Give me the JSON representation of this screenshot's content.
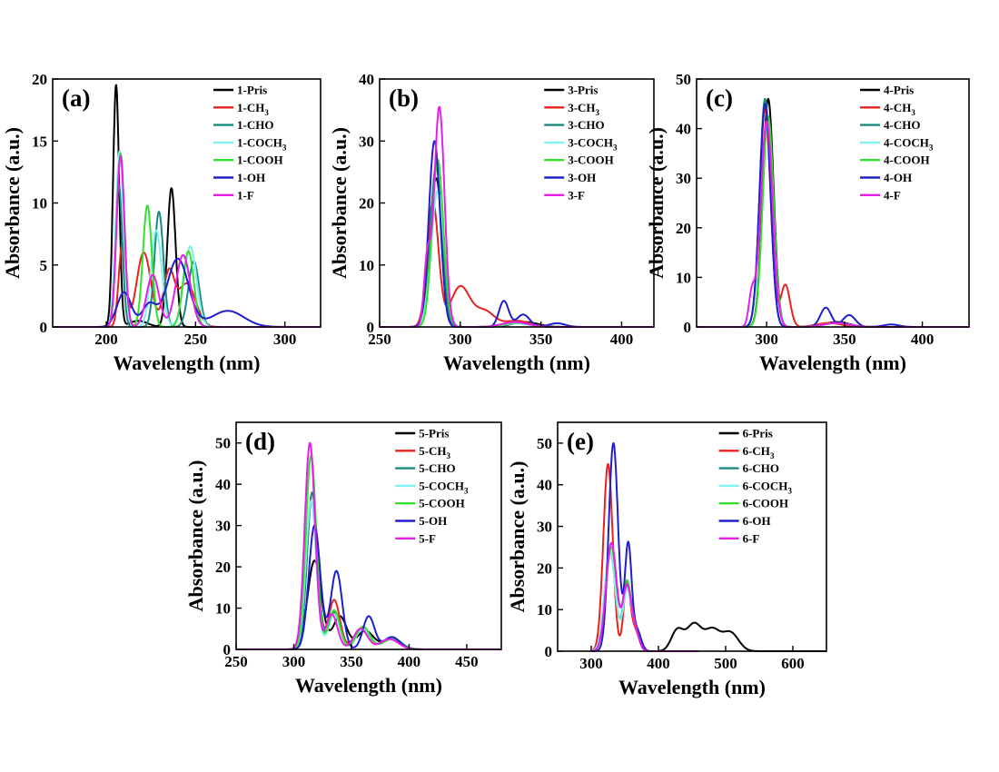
{
  "colors": {
    "Pris": "#000000",
    "CH3": "#e8231e",
    "CHO": "#1a8a7e",
    "COCH3": "#7ff2ef",
    "COOH": "#33e02d",
    "OH": "#1f1fcc",
    "F": "#e81ee8"
  },
  "chart_data": [
    {
      "type": "line",
      "panel": "(a)",
      "xlabel": "Wavelength (nm)",
      "ylabel": "Absorbance (a.u.)",
      "xlim": [
        170,
        320
      ],
      "ylim": [
        0,
        20
      ],
      "xticks": [
        200,
        250,
        300
      ],
      "yticks": [
        0,
        5,
        10,
        15,
        20
      ],
      "legend": [
        "1-Pris",
        "1-CH3",
        "1-CHO",
        "1-COCH3",
        "1-COOH",
        "1-OH",
        "1-F"
      ],
      "series": [
        {
          "name": "1-Pris",
          "key": "Pris",
          "peaks": [
            [
              205.5,
              19.5,
              1.7
            ],
            [
              236.5,
              11.2,
              2.3
            ],
            [
              218,
              0.5,
              5
            ]
          ]
        },
        {
          "name": "1-CH3",
          "key": "CH3",
          "peaks": [
            [
              209,
              6.7,
              2
            ],
            [
              221,
              6,
              4
            ],
            [
              235,
              4.2,
              3
            ],
            [
              245,
              3.5,
              5
            ]
          ]
        },
        {
          "name": "1-CHO",
          "key": "CHO",
          "peaks": [
            [
              207,
              11.5,
              2
            ],
            [
              229.5,
              9.3,
              2.5
            ],
            [
              249,
              5.3,
              3
            ]
          ]
        },
        {
          "name": "1-COCH3",
          "key": "COCH3",
          "peaks": [
            [
              207.5,
              14.2,
              2.2
            ],
            [
              228,
              7.8,
              3
            ],
            [
              247,
              6.5,
              3.5
            ]
          ]
        },
        {
          "name": "1-COOH",
          "key": "COOH",
          "peaks": [
            [
              208,
              14,
              2.2
            ],
            [
              223,
              9.8,
              2.5
            ],
            [
              246,
              6.1,
              3
            ]
          ]
        },
        {
          "name": "1-OH",
          "key": "OH",
          "peaks": [
            [
              210,
              2.8,
              4
            ],
            [
              224,
              1.8,
              4
            ],
            [
              240,
              5.5,
              6
            ],
            [
              268,
              1.3,
              9
            ]
          ]
        },
        {
          "name": "1-F",
          "key": "F",
          "peaks": [
            [
              208,
              13.8,
              2.2
            ],
            [
              226,
              4.2,
              3.5
            ],
            [
              243,
              5.8,
              4
            ]
          ]
        }
      ]
    },
    {
      "type": "line",
      "panel": "(b)",
      "xlabel": "Wavelength (nm)",
      "ylabel": "Absorbance (a.u.)",
      "xlim": [
        250,
        420
      ],
      "ylim": [
        0,
        40
      ],
      "xticks": [
        250,
        300,
        350,
        400
      ],
      "yticks": [
        0,
        10,
        20,
        30,
        40
      ],
      "legend": [
        "3-Pris",
        "3-CH3",
        "3-CHO",
        "3-COCH3",
        "3-COOH",
        "3-OH",
        "3-F"
      ],
      "series": [
        {
          "name": "3-Pris",
          "key": "Pris",
          "peaks": [
            [
              285,
              24,
              4
            ],
            [
              340,
              0.8,
              8
            ]
          ]
        },
        {
          "name": "3-CH3",
          "key": "CH3",
          "peaks": [
            [
              283,
              20,
              3.5
            ],
            [
              300,
              6.5,
              6
            ],
            [
              315,
              2.5,
              6
            ],
            [
              335,
              1,
              8
            ]
          ]
        },
        {
          "name": "3-CHO",
          "key": "CHO",
          "peaks": [
            [
              285,
              26,
              3.5
            ],
            [
              335,
              0.6,
              8
            ]
          ]
        },
        {
          "name": "3-COCH3",
          "key": "COCH3",
          "peaks": [
            [
              286,
              22,
              4
            ],
            [
              336,
              0.6,
              8
            ]
          ]
        },
        {
          "name": "3-COOH",
          "key": "COOH",
          "peaks": [
            [
              286,
              27,
              3.5
            ],
            [
              335,
              0.7,
              8
            ]
          ]
        },
        {
          "name": "3-OH",
          "key": "OH",
          "peaks": [
            [
              284,
              30,
              3.5
            ],
            [
              327,
              4.2,
              3
            ],
            [
              339,
              2,
              4
            ],
            [
              360,
              0.6,
              5
            ]
          ]
        },
        {
          "name": "3-F",
          "key": "F",
          "peaks": [
            [
              279.5,
              10.5,
              2
            ],
            [
              287,
              35.5,
              3.2
            ],
            [
              334,
              0.8,
              8
            ]
          ]
        }
      ]
    },
    {
      "type": "line",
      "panel": "(c)",
      "xlabel": "Wavelength (nm)",
      "ylabel": "Absorbance (a.u.)",
      "xlim": [
        255,
        430
      ],
      "ylim": [
        0,
        50
      ],
      "xticks": [
        300,
        350,
        400
      ],
      "yticks": [
        0,
        10,
        20,
        30,
        40,
        50
      ],
      "legend": [
        "4-Pris",
        "4-CH3",
        "4-CHO",
        "4-COCH3",
        "4-COOH",
        "4-OH",
        "4-F"
      ],
      "series": [
        {
          "name": "4-Pris",
          "key": "Pris",
          "peaks": [
            [
              301,
              46,
              3.5
            ],
            [
              345,
              1,
              8
            ]
          ]
        },
        {
          "name": "4-CH3",
          "key": "CH3",
          "peaks": [
            [
              299,
              44,
              3.5
            ],
            [
              312,
              8.5,
              3
            ],
            [
              340,
              0.8,
              8
            ]
          ]
        },
        {
          "name": "4-CHO",
          "key": "CHO",
          "peaks": [
            [
              299,
              46,
              3.5
            ],
            [
              345,
              0.8,
              8
            ]
          ]
        },
        {
          "name": "4-COCH3",
          "key": "COCH3",
          "peaks": [
            [
              300,
              40,
              4
            ],
            [
              345,
              0.8,
              8
            ]
          ]
        },
        {
          "name": "4-COOH",
          "key": "COOH",
          "peaks": [
            [
              301,
              42.5,
              3.5
            ],
            [
              345,
              0.8,
              8
            ]
          ]
        },
        {
          "name": "4-OH",
          "key": "OH",
          "peaks": [
            [
              299,
              45,
              3.5
            ],
            [
              338,
              3.9,
              3.5
            ],
            [
              353,
              2.4,
              4
            ],
            [
              380,
              0.5,
              5
            ]
          ]
        },
        {
          "name": "4-F",
          "key": "F",
          "peaks": [
            [
              290.5,
              6.5,
              2
            ],
            [
              300,
              41.5,
              3.8
            ],
            [
              345,
              0.8,
              8
            ]
          ]
        }
      ]
    },
    {
      "type": "line",
      "panel": "(d)",
      "xlabel": "Wavelength (nm)",
      "ylabel": "Absorbance (a.u.)",
      "xlim": [
        250,
        480
      ],
      "ylim": [
        0,
        55
      ],
      "xticks": [
        250,
        300,
        350,
        400,
        450
      ],
      "yticks": [
        0,
        10,
        20,
        30,
        40,
        50
      ],
      "legend": [
        "5-Pris",
        "5-CH3",
        "5-CHO",
        "5-COCH3",
        "5-COOH",
        "5-OH",
        "5-F"
      ],
      "series": [
        {
          "name": "5-Pris",
          "key": "Pris",
          "peaks": [
            [
              318,
              21.5,
              6
            ],
            [
              340,
              8,
              6
            ],
            [
              362,
              4.5,
              7
            ],
            [
              385,
              2.5,
              8
            ]
          ]
        },
        {
          "name": "5-CH3",
          "key": "CH3",
          "peaks": [
            [
              316,
              38,
              4.5
            ],
            [
              335,
              12,
              5
            ],
            [
              358,
              5,
              6
            ],
            [
              383,
              2.5,
              8
            ]
          ]
        },
        {
          "name": "5-CHO",
          "key": "CHO",
          "peaks": [
            [
              316,
              38,
              4.5
            ],
            [
              335,
              9,
              5
            ],
            [
              360,
              5,
              6
            ],
            [
              385,
              2.8,
              8
            ]
          ]
        },
        {
          "name": "5-COCH3",
          "key": "COCH3",
          "peaks": [
            [
              315,
              36,
              4.5
            ],
            [
              335,
              8.5,
              5
            ],
            [
              360,
              5,
              6
            ],
            [
              385,
              2.5,
              8
            ]
          ]
        },
        {
          "name": "5-COOH",
          "key": "COOH",
          "peaks": [
            [
              315,
              47,
              4.5
            ],
            [
              335,
              9.5,
              5
            ],
            [
              360,
              5.5,
              6
            ],
            [
              385,
              2.5,
              8
            ]
          ]
        },
        {
          "name": "5-OH",
          "key": "OH",
          "peaks": [
            [
              318,
              30,
              5
            ],
            [
              337,
              19,
              5
            ],
            [
              365,
              8,
              5
            ],
            [
              385,
              3,
              7
            ]
          ]
        },
        {
          "name": "5-F",
          "key": "F",
          "peaks": [
            [
              314,
              50,
              4.5
            ],
            [
              333,
              8.5,
              5
            ],
            [
              358,
              5,
              6
            ],
            [
              383,
              2.5,
              8
            ]
          ]
        }
      ]
    },
    {
      "type": "line",
      "panel": "(e)",
      "xlabel": "Wavelength (nm)",
      "ylabel": "Absorbance (a.u.)",
      "xlim": [
        250,
        650
      ],
      "ylim": [
        0,
        55
      ],
      "xticks": [
        300,
        400,
        500,
        600
      ],
      "yticks": [
        0,
        10,
        20,
        30,
        40,
        50
      ],
      "legend": [
        "6-Pris",
        "6-CH3",
        "6-CHO",
        "6-COCH3",
        "6-COOH",
        "6-OH",
        "6-F"
      ],
      "series": [
        {
          "name": "6-Pris",
          "key": "Pris",
          "xmin": 400,
          "xmax": 650,
          "peaks": [
            [
              428,
              5,
              9
            ],
            [
              453,
              6.5,
              11
            ],
            [
              480,
              5,
              11
            ],
            [
              507,
              4.5,
              12
            ]
          ]
        },
        {
          "name": "6-CH3",
          "key": "CH3",
          "xmin": 300,
          "xmax": 400,
          "peaks": [
            [
              325,
              45,
              7
            ],
            [
              353,
              16,
              5
            ],
            [
              365,
              5,
              6
            ]
          ]
        },
        {
          "name": "6-CHO",
          "key": "CHO",
          "xmin": 300,
          "xmax": 400,
          "peaks": [
            [
              328,
              24,
              8
            ],
            [
              353,
              15,
              6
            ],
            [
              365,
              5,
              6
            ]
          ]
        },
        {
          "name": "6-COCH3",
          "key": "COCH3",
          "xmin": 300,
          "xmax": 400,
          "peaks": [
            [
              328,
              24,
              8
            ],
            [
              353,
              14,
              6
            ],
            [
              365,
              5,
              6
            ]
          ]
        },
        {
          "name": "6-COOH",
          "key": "COOH",
          "xmin": 300,
          "xmax": 400,
          "peaks": [
            [
              330,
              25,
              8
            ],
            [
              353,
              16,
              6
            ],
            [
              365,
              5,
              6
            ]
          ]
        },
        {
          "name": "6-OH",
          "key": "OH",
          "xmin": 300,
          "xmax": 400,
          "peaks": [
            [
              333,
              50,
              7
            ],
            [
              355,
              25.5,
              5
            ],
            [
              368,
              5,
              6
            ]
          ]
        },
        {
          "name": "6-F",
          "key": "F",
          "xmin": 300,
          "xmax": 460,
          "peaks": [
            [
              330,
              26,
              8
            ],
            [
              353,
              15,
              6
            ],
            [
              365,
              5,
              6
            ]
          ]
        }
      ]
    }
  ]
}
